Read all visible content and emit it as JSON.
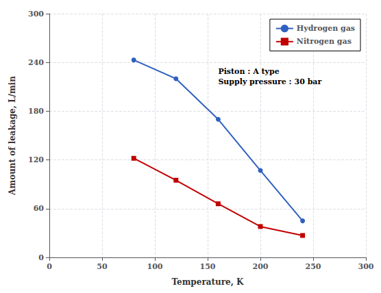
{
  "chart_data": {
    "type": "line",
    "x": [
      80,
      120,
      160,
      200,
      240
    ],
    "series": [
      {
        "name": "Hydrogen gas",
        "color": "#3060c0",
        "marker": "circle",
        "values": [
          243,
          220,
          170,
          107,
          45
        ]
      },
      {
        "name": "Nitrogen gas",
        "color": "#c00000",
        "marker": "square",
        "values": [
          122,
          95,
          66,
          38,
          27
        ]
      }
    ],
    "xlabel": "Temperature, K",
    "ylabel": "Amount of leakage, L/min",
    "xlim": [
      0,
      300
    ],
    "ylim": [
      0,
      300
    ],
    "xticks": [
      0,
      50,
      100,
      150,
      200,
      250,
      300
    ],
    "yticks": [
      0,
      60,
      120,
      180,
      240,
      300
    ],
    "grid": true,
    "legend": "upper right",
    "annotations": [
      {
        "text": "Piston : A type\nSupply pressure : 30 bar",
        "x": 160,
        "y": 235
      }
    ]
  }
}
